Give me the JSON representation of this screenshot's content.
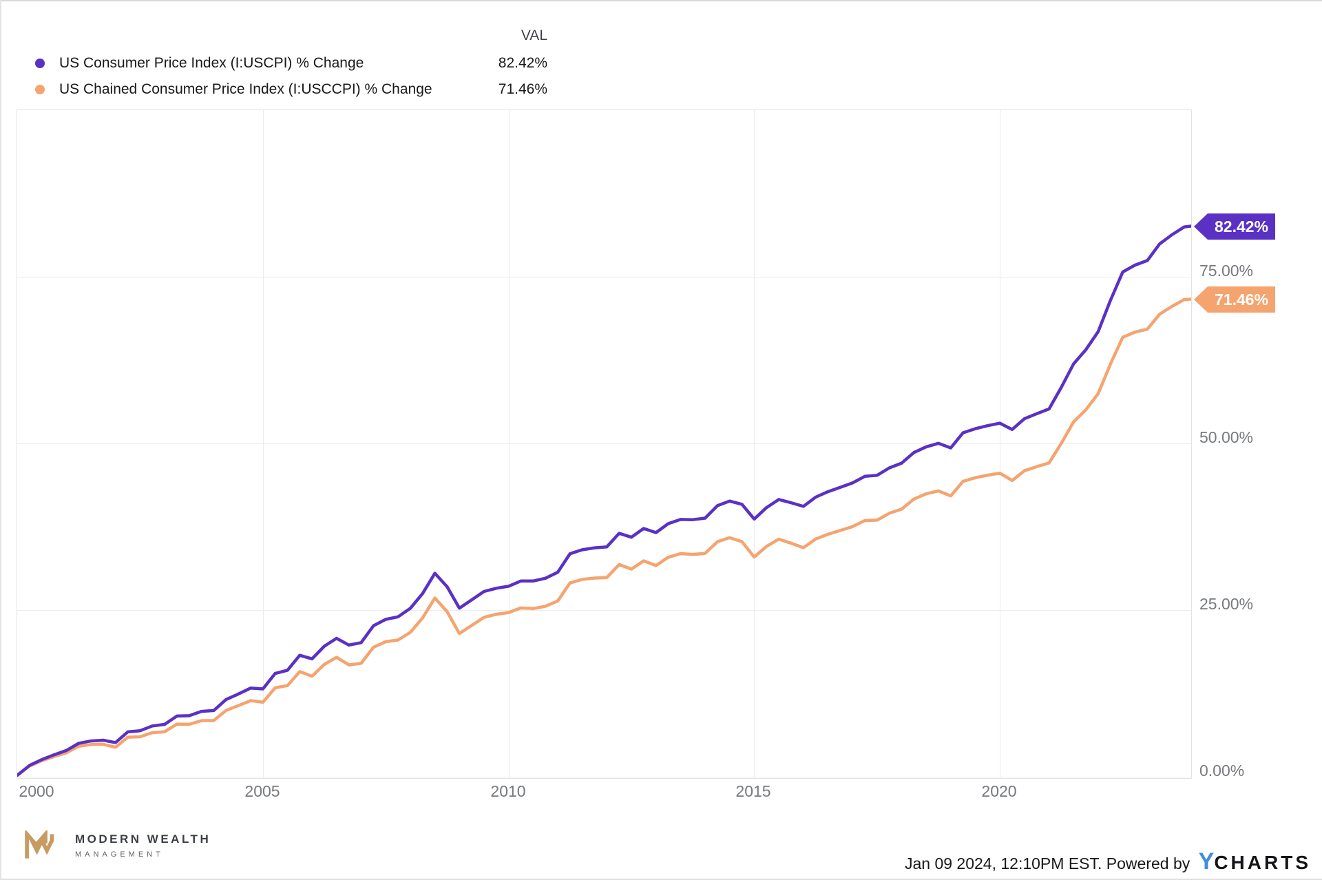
{
  "legend": {
    "val_header": "VAL",
    "series": [
      {
        "label": "US Consumer Price Index (I:USCPI) % Change",
        "value": "82.42%",
        "color": "#5a31c4"
      },
      {
        "label": "US Chained Consumer Price Index (I:USCCPI) % Change",
        "value": "71.46%",
        "color": "#f5a470"
      }
    ]
  },
  "chart_data": {
    "type": "line",
    "title": "",
    "xlabel": "",
    "ylabel": "",
    "xlim": [
      2000,
      2023.92
    ],
    "ylim": [
      0,
      100
    ],
    "grid": true,
    "y_axis_side": "right",
    "legend_position": "top-left",
    "x_tick_labels": [
      "2000",
      "2005",
      "2010",
      "2015",
      "2020"
    ],
    "y_tick_labels": [
      "75.00%",
      "50.00%",
      "25.00%",
      "0.00%"
    ],
    "y_tick_values": [
      75,
      50,
      25,
      0
    ],
    "x": [
      2000,
      2000.25,
      2000.5,
      2000.75,
      2001,
      2001.25,
      2001.5,
      2001.75,
      2002,
      2002.25,
      2002.5,
      2002.75,
      2003,
      2003.25,
      2003.5,
      2003.75,
      2004,
      2004.25,
      2004.5,
      2004.75,
      2005,
      2005.25,
      2005.5,
      2005.75,
      2006,
      2006.25,
      2006.5,
      2006.75,
      2007,
      2007.25,
      2007.5,
      2007.75,
      2008,
      2008.25,
      2008.5,
      2008.75,
      2009,
      2009.25,
      2009.5,
      2009.75,
      2010,
      2010.25,
      2010.5,
      2010.75,
      2011,
      2011.25,
      2011.5,
      2011.75,
      2012,
      2012.25,
      2012.5,
      2012.75,
      2013,
      2013.25,
      2013.5,
      2013.75,
      2014,
      2014.25,
      2014.5,
      2014.75,
      2015,
      2015.25,
      2015.5,
      2015.75,
      2016,
      2016.25,
      2016.5,
      2016.75,
      2017,
      2017.25,
      2017.5,
      2017.75,
      2018,
      2018.25,
      2018.5,
      2018.75,
      2019,
      2019.25,
      2019.5,
      2019.75,
      2020,
      2020.25,
      2020.5,
      2020.75,
      2021,
      2021.25,
      2021.5,
      2021.75,
      2022,
      2022.25,
      2022.5,
      2022.75,
      2023,
      2023.25,
      2023.5,
      2023.75,
      2023.92
    ],
    "series": [
      {
        "name": "US Consumer Price Index (I:USCPI) % Change",
        "ticker": "I:USCPI",
        "color": "#5a31c4",
        "badge": "82.42%",
        "final_value": 82.42,
        "values": [
          0,
          1.48,
          2.37,
          3.08,
          3.73,
          4.8,
          5.15,
          5.27,
          4.92,
          6.52,
          6.69,
          7.41,
          7.64,
          8.89,
          8.95,
          9.6,
          9.72,
          11.37,
          12.2,
          13.09,
          12.97,
          15.28,
          15.76,
          18.01,
          17.48,
          19.37,
          20.56,
          19.55,
          19.91,
          22.44,
          23.4,
          23.78,
          25.05,
          27.26,
          30.31,
          28.3,
          25.08,
          26.33,
          27.58,
          28.07,
          28.37,
          29.15,
          29.15,
          29.57,
          30.46,
          33.24,
          33.84,
          34.13,
          34.28,
          36.31,
          35.72,
          37.04,
          36.42,
          37.76,
          38.39,
          38.36,
          38.58,
          40.45,
          41.15,
          40.66,
          38.45,
          40.17,
          41.38,
          40.9,
          40.35,
          41.74,
          42.55,
          43.2,
          43.86,
          44.86,
          45.01,
          46.13,
          46.84,
          48.43,
          49.29,
          49.81,
          49.12,
          51.39,
          52,
          52.46,
          52.83,
          51.89,
          53.5,
          54.26,
          54.97,
          58.21,
          61.73,
          63.86,
          66.56,
          71.27,
          75.52,
          76.55,
          77.23,
          79.72,
          81.1,
          82.27,
          82.42
        ]
      },
      {
        "name": "US Chained Consumer Price Index (I:USCCPI) % Change",
        "ticker": "I:USCCPI",
        "color": "#f5a470",
        "badge": "71.46%",
        "final_value": 71.46,
        "values": [
          0,
          1.39,
          2.19,
          2.82,
          3.38,
          4.36,
          4.62,
          4.66,
          4.22,
          5.72,
          5.79,
          6.41,
          6.54,
          7.69,
          7.65,
          8.2,
          8.22,
          9.74,
          10.45,
          11.21,
          10.97,
          13.13,
          13.46,
          15.56,
          14.88,
          16.64,
          17.71,
          16.57,
          16.81,
          19.21,
          20.05,
          20.3,
          21.45,
          23.61,
          26.61,
          24.55,
          21.28,
          22.49,
          23.7,
          24.16,
          24.42,
          25.11,
          25.02,
          25.36,
          26.16,
          28.86,
          29.39,
          29.6,
          29.68,
          31.62,
          30.94,
          32.18,
          31.47,
          32.72,
          33.26,
          33.15,
          33.28,
          35.05,
          35.65,
          35.06,
          32.75,
          34.34,
          35.43,
          34.82,
          34.15,
          35.45,
          36.17,
          36.74,
          37.31,
          38.22,
          38.28,
          39.32,
          39.94,
          41.45,
          42.24,
          42.68,
          41.92,
          44.11,
          44.65,
          45.03,
          45.33,
          44.24,
          45.7,
          46.31,
          46.87,
          49.81,
          53.03,
          54.86,
          57.26,
          61.72,
          65.72,
          66.5,
          66.93,
          69.17,
          70.35,
          71.37,
          71.46
        ]
      }
    ]
  },
  "footer": {
    "brand": {
      "line1": "MODERN WEALTH",
      "line2": "MANAGEMENT",
      "mark_color": "#c79b62"
    },
    "timestamp": "Jan 09 2024, 12:10PM EST. Powered by",
    "ycharts": {
      "y": "Y",
      "rest": "CHARTS",
      "y_color": "#3e8edc"
    }
  }
}
